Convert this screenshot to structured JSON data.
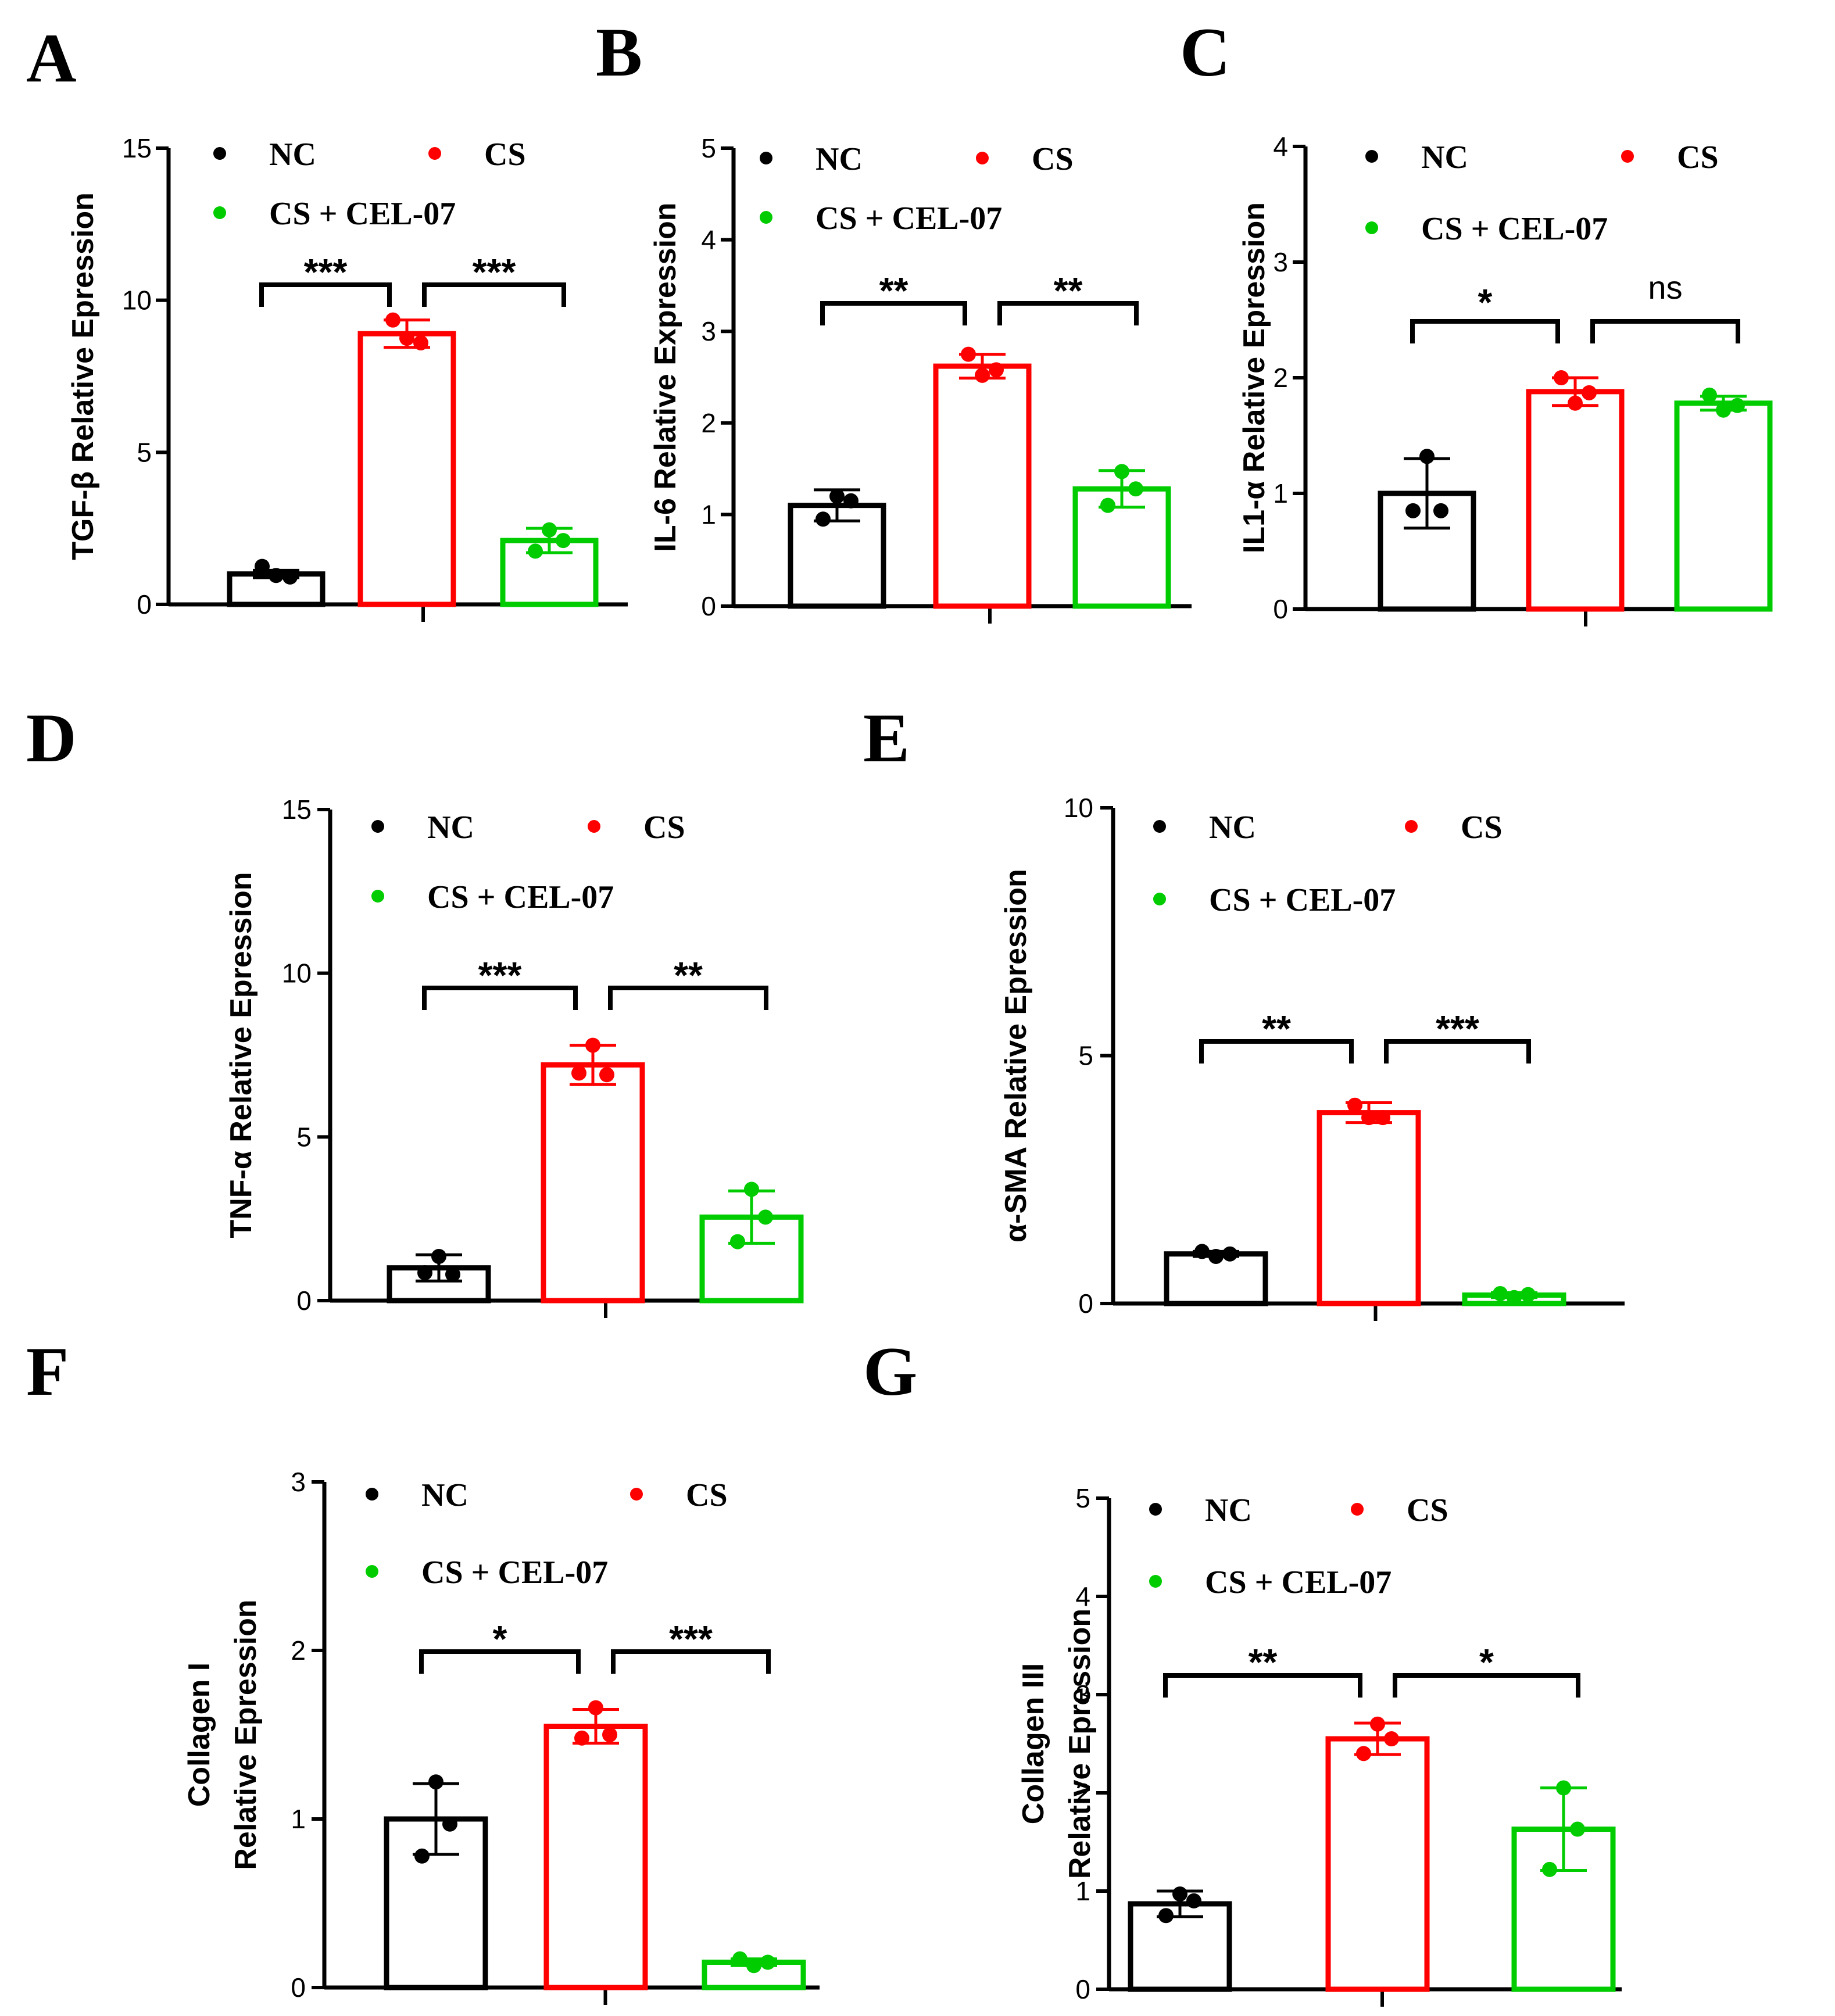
{
  "legend": {
    "nc": "NC",
    "cs": "CS",
    "cel": "CS + CEL-07"
  },
  "colors": {
    "NC": "#000000",
    "CS": "#ff0000",
    "CS + CEL-07": "#00cc00"
  },
  "chart_data": [
    {
      "id": "A",
      "type": "bar",
      "panel_label": "A",
      "ylabel": [
        "TGF-β Relative Epression"
      ],
      "ylim": [
        0,
        15
      ],
      "yticks": [
        0,
        5,
        10,
        15
      ],
      "categories": [
        "NC",
        "CS",
        "CS + CEL-07"
      ],
      "values": [
        1.0,
        8.9,
        2.1
      ],
      "error": [
        0.12,
        0.45,
        0.4
      ],
      "points": [
        [
          0.95,
          1.25,
          0.9
        ],
        [
          8.75,
          9.35,
          8.6
        ],
        [
          2.45,
          1.75,
          2.1
        ]
      ],
      "significance": [
        {
          "from": 0,
          "to": 1,
          "label": "***"
        },
        {
          "from": 1,
          "to": 2,
          "label": "***"
        }
      ]
    },
    {
      "id": "B",
      "type": "bar",
      "panel_label": "B",
      "ylabel": [
        "IL-6  Relative Expression"
      ],
      "ylim": [
        0,
        5
      ],
      "yticks": [
        0,
        1,
        2,
        3,
        4,
        5
      ],
      "categories": [
        "NC",
        "CS",
        "CS + CEL-07"
      ],
      "values": [
        1.1,
        2.62,
        1.28
      ],
      "error": [
        0.17,
        0.13,
        0.2
      ],
      "points": [
        [
          1.2,
          0.95,
          1.15
        ],
        [
          2.52,
          2.75,
          2.58
        ],
        [
          1.47,
          1.1,
          1.28
        ]
      ],
      "significance": [
        {
          "from": 0,
          "to": 1,
          "label": "**"
        },
        {
          "from": 1,
          "to": 2,
          "label": "**"
        }
      ]
    },
    {
      "id": "C",
      "type": "bar",
      "panel_label": "C",
      "ylabel": [
        "IL1-α Relative Epression"
      ],
      "ylim": [
        0,
        4
      ],
      "yticks": [
        0,
        1,
        2,
        3,
        4
      ],
      "categories": [
        "NC",
        "CS",
        "CS + CEL-07"
      ],
      "values": [
        1.0,
        1.88,
        1.78
      ],
      "error": [
        0.3,
        0.12,
        0.06
      ],
      "points": [
        [
          1.32,
          0.85,
          0.85
        ],
        [
          1.78,
          2.0,
          1.87
        ],
        [
          1.72,
          1.85,
          1.76
        ]
      ],
      "significance": [
        {
          "from": 0,
          "to": 1,
          "label": "*"
        },
        {
          "from": 1,
          "to": 2,
          "label": "ns"
        }
      ]
    },
    {
      "id": "D",
      "type": "bar",
      "panel_label": "D",
      "ylabel": [
        "TNF-α Relative Epression"
      ],
      "ylim": [
        0,
        15
      ],
      "yticks": [
        0,
        5,
        10,
        15
      ],
      "categories": [
        "NC",
        "CS",
        "CS + CEL-07"
      ],
      "values": [
        1.0,
        7.2,
        2.55
      ],
      "error": [
        0.4,
        0.6,
        0.8
      ],
      "points": [
        [
          1.35,
          0.85,
          0.8
        ],
        [
          7.8,
          6.95,
          6.9
        ],
        [
          3.4,
          1.8,
          2.55
        ]
      ],
      "significance": [
        {
          "from": 0,
          "to": 1,
          "label": "***"
        },
        {
          "from": 1,
          "to": 2,
          "label": "**"
        }
      ]
    },
    {
      "id": "E",
      "type": "bar",
      "panel_label": "E",
      "ylabel": [
        "α-SMA Relative Epression"
      ],
      "ylim": [
        0,
        10
      ],
      "yticks": [
        0,
        5,
        10
      ],
      "categories": [
        "NC",
        "CS",
        "CS + CEL-07"
      ],
      "values": [
        1.0,
        3.85,
        0.17
      ],
      "error": [
        0.05,
        0.2,
        0.05
      ],
      "points": [
        [
          0.95,
          1.05,
          1.0
        ],
        [
          3.75,
          4.0,
          3.75
        ],
        [
          0.12,
          0.2,
          0.18
        ]
      ],
      "significance": [
        {
          "from": 0,
          "to": 1,
          "label": "**"
        },
        {
          "from": 1,
          "to": 2,
          "label": "***"
        }
      ]
    },
    {
      "id": "F",
      "type": "bar",
      "panel_label": "F",
      "ylabel": [
        "Collagen I",
        "Relative Epression"
      ],
      "ylim": [
        0,
        3
      ],
      "yticks": [
        0,
        1,
        2,
        3
      ],
      "categories": [
        "NC",
        "CS",
        "CS + CEL-07"
      ],
      "values": [
        1.0,
        1.55,
        0.15
      ],
      "error": [
        0.21,
        0.1,
        0.02
      ],
      "points": [
        [
          1.22,
          0.78,
          0.97
        ],
        [
          1.66,
          1.48,
          1.5
        ],
        [
          0.13,
          0.17,
          0.15
        ]
      ],
      "significance": [
        {
          "from": 0,
          "to": 1,
          "label": "*"
        },
        {
          "from": 1,
          "to": 2,
          "label": "***"
        }
      ]
    },
    {
      "id": "G",
      "type": "bar",
      "panel_label": "G",
      "ylabel": [
        "Collagen III",
        "Relative Epression"
      ],
      "ylim": [
        0,
        5
      ],
      "yticks": [
        0,
        1,
        2,
        3,
        4,
        5
      ],
      "categories": [
        "NC",
        "CS",
        "CS + CEL-07"
      ],
      "values": [
        0.87,
        2.55,
        1.63
      ],
      "error": [
        0.13,
        0.16,
        0.42
      ],
      "points": [
        [
          0.97,
          0.75,
          0.9
        ],
        [
          2.7,
          2.4,
          2.55
        ],
        [
          2.05,
          1.22,
          1.63
        ]
      ],
      "significance": [
        {
          "from": 0,
          "to": 1,
          "label": "**"
        },
        {
          "from": 1,
          "to": 2,
          "label": "*"
        }
      ]
    }
  ]
}
